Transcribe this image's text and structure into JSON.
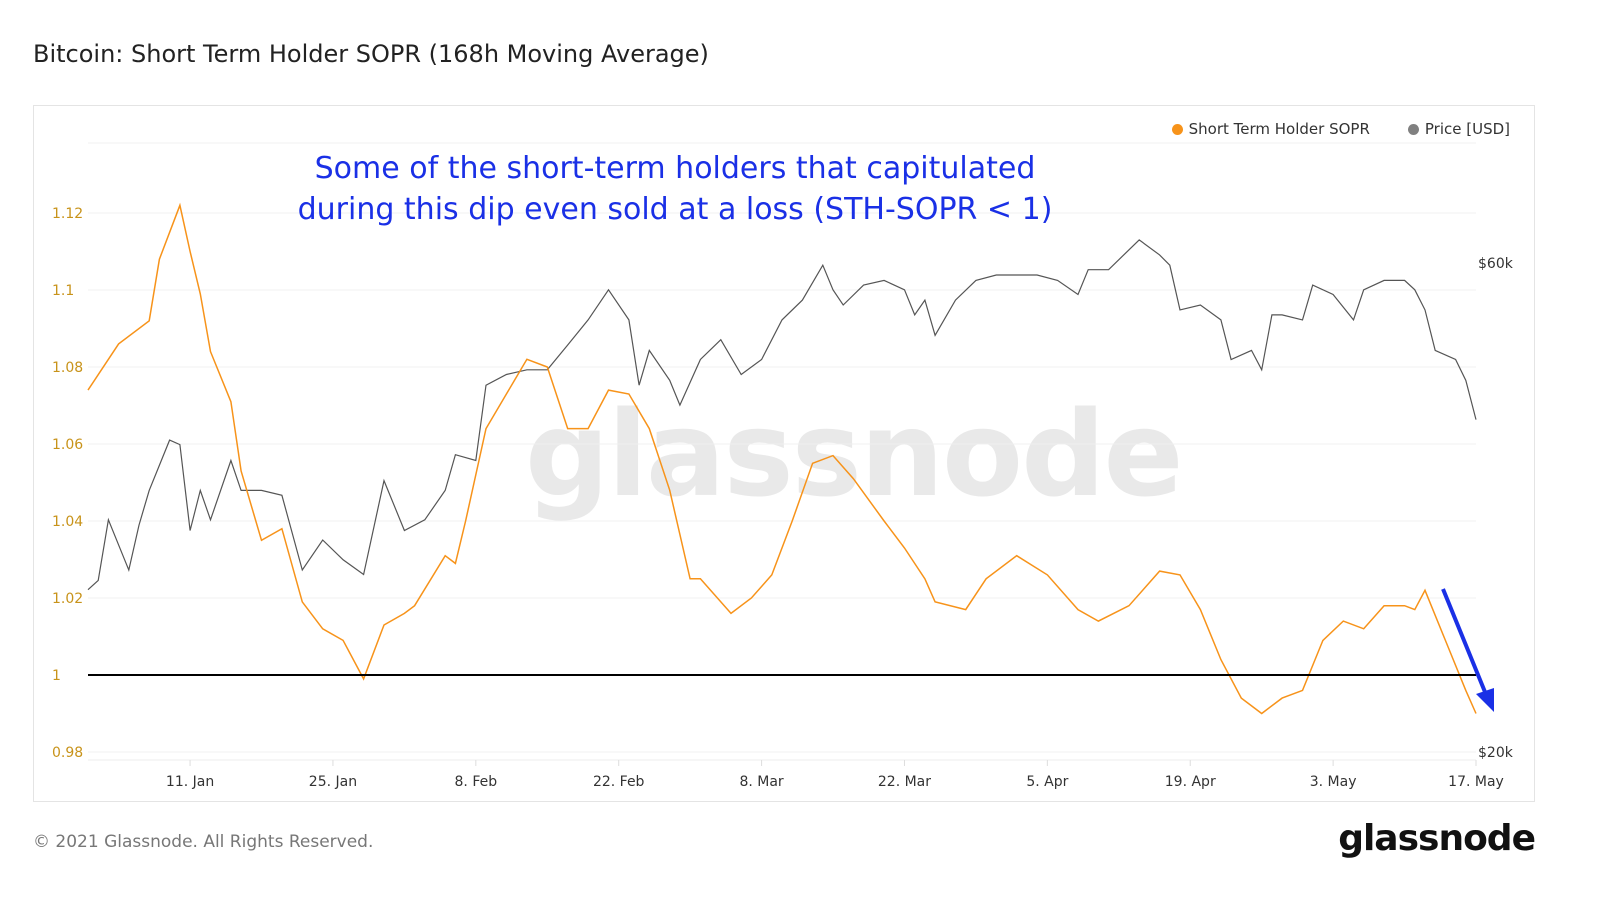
{
  "header": {
    "title": "Bitcoin: Short Term Holder SOPR (168h Moving Average)"
  },
  "footer": {
    "copyright": "© 2021 Glassnode. All Rights Reserved.",
    "logo": "glassnode"
  },
  "watermark": "glassnode",
  "chart_data": {
    "type": "line",
    "annotation": "Some of the short-term holders that capitulated during this dip even sold at a loss (STH-SOPR < 1)",
    "annotation_lines": [
      "Some of the short-term holders that capitulated",
      "during this dip even sold at a loss (STH-SOPR < 1)"
    ],
    "annotation_color": "#1a30e6",
    "annotation_arrow": "down-right arrow pointing to the final SOPR drop",
    "legend_position": "top-right",
    "grid": true,
    "x_range": [
      "2021-01-01",
      "2021-05-17"
    ],
    "x_ticks": [
      "11. Jan",
      "25. Jan",
      "8. Feb",
      "22. Feb",
      "8. Mar",
      "22. Mar",
      "5. Apr",
      "19. Apr",
      "3. May",
      "17. May"
    ],
    "x_tick_dates": [
      "2021-01-11",
      "2021-01-25",
      "2021-02-08",
      "2021-02-22",
      "2021-03-08",
      "2021-03-22",
      "2021-04-05",
      "2021-04-19",
      "2021-05-03",
      "2021-05-17"
    ],
    "y_left": {
      "ylim": [
        0.98,
        1.12
      ],
      "ticks": [
        "0.98",
        "1",
        "1.02",
        "1.04",
        "1.06",
        "1.08",
        "1.1",
        "1.12"
      ],
      "color": "#c8931a"
    },
    "y_right": {
      "scale": "log",
      "ylim": [
        20000,
        60000
      ],
      "ticks": [
        {
          "label": "$20k",
          "value": 20000
        },
        {
          "label": "$60k",
          "value": 60000
        }
      ]
    },
    "reference_line": {
      "value": 1,
      "color": "#000000"
    },
    "series": [
      {
        "name": "Short Term Holder SOPR",
        "axis": "left",
        "color": "#f7931a",
        "dates": [
          "2021-01-01",
          "2021-01-02",
          "2021-01-04",
          "2021-01-07",
          "2021-01-08",
          "2021-01-10",
          "2021-01-11",
          "2021-01-12",
          "2021-01-13",
          "2021-01-15",
          "2021-01-16",
          "2021-01-18",
          "2021-01-20",
          "2021-01-22",
          "2021-01-24",
          "2021-01-26",
          "2021-01-28",
          "2021-01-30",
          "2021-02-01",
          "2021-02-02",
          "2021-02-05",
          "2021-02-06",
          "2021-02-07",
          "2021-02-09",
          "2021-02-11",
          "2021-02-13",
          "2021-02-15",
          "2021-02-17",
          "2021-02-19",
          "2021-02-21",
          "2021-02-23",
          "2021-02-25",
          "2021-02-27",
          "2021-03-01",
          "2021-03-02",
          "2021-03-05",
          "2021-03-07",
          "2021-03-09",
          "2021-03-11",
          "2021-03-13",
          "2021-03-15",
          "2021-03-17",
          "2021-03-20",
          "2021-03-22",
          "2021-03-24",
          "2021-03-25",
          "2021-03-28",
          "2021-03-30",
          "2021-04-02",
          "2021-04-05",
          "2021-04-08",
          "2021-04-10",
          "2021-04-13",
          "2021-04-16",
          "2021-04-18",
          "2021-04-20",
          "2021-04-22",
          "2021-04-24",
          "2021-04-26",
          "2021-04-28",
          "2021-04-30",
          "2021-05-02",
          "2021-05-04",
          "2021-05-06",
          "2021-05-08",
          "2021-05-10",
          "2021-05-11",
          "2021-05-12",
          "2021-05-14",
          "2021-05-16",
          "2021-05-17"
        ],
        "values": [
          1.074,
          1.078,
          1.086,
          1.092,
          1.108,
          1.122,
          1.11,
          1.099,
          1.084,
          1.071,
          1.053,
          1.035,
          1.038,
          1.019,
          1.012,
          1.009,
          0.999,
          1.013,
          1.016,
          1.018,
          1.031,
          1.029,
          1.04,
          1.064,
          1.073,
          1.082,
          1.08,
          1.064,
          1.064,
          1.074,
          1.073,
          1.064,
          1.048,
          1.025,
          1.025,
          1.016,
          1.02,
          1.026,
          1.04,
          1.055,
          1.057,
          1.051,
          1.04,
          1.033,
          1.025,
          1.019,
          1.017,
          1.025,
          1.031,
          1.026,
          1.017,
          1.014,
          1.018,
          1.027,
          1.026,
          1.017,
          1.004,
          0.994,
          0.99,
          0.994,
          0.996,
          1.009,
          1.014,
          1.012,
          1.018,
          1.018,
          1.017,
          1.022,
          1.009,
          0.996,
          0.99
        ]
      },
      {
        "name": "Price [USD]",
        "axis": "right",
        "color": "#808080",
        "dates": [
          "2021-01-01",
          "2021-01-02",
          "2021-01-03",
          "2021-01-05",
          "2021-01-06",
          "2021-01-07",
          "2021-01-09",
          "2021-01-10",
          "2021-01-11",
          "2021-01-12",
          "2021-01-13",
          "2021-01-15",
          "2021-01-16",
          "2021-01-18",
          "2021-01-20",
          "2021-01-22",
          "2021-01-24",
          "2021-01-26",
          "2021-01-28",
          "2021-01-30",
          "2021-02-01",
          "2021-02-03",
          "2021-02-05",
          "2021-02-06",
          "2021-02-08",
          "2021-02-09",
          "2021-02-11",
          "2021-02-13",
          "2021-02-15",
          "2021-02-17",
          "2021-02-19",
          "2021-02-21",
          "2021-02-23",
          "2021-02-24",
          "2021-02-25",
          "2021-02-27",
          "2021-02-28",
          "2021-03-02",
          "2021-03-04",
          "2021-03-06",
          "2021-03-08",
          "2021-03-10",
          "2021-03-12",
          "2021-03-14",
          "2021-03-15",
          "2021-03-16",
          "2021-03-18",
          "2021-03-20",
          "2021-03-22",
          "2021-03-23",
          "2021-03-24",
          "2021-03-25",
          "2021-03-27",
          "2021-03-29",
          "2021-03-31",
          "2021-04-02",
          "2021-04-04",
          "2021-04-06",
          "2021-04-08",
          "2021-04-09",
          "2021-04-11",
          "2021-04-13",
          "2021-04-14",
          "2021-04-16",
          "2021-04-17",
          "2021-04-18",
          "2021-04-20",
          "2021-04-22",
          "2021-04-23",
          "2021-04-25",
          "2021-04-26",
          "2021-04-27",
          "2021-04-28",
          "2021-04-30",
          "2021-05-01",
          "2021-05-03",
          "2021-05-05",
          "2021-05-06",
          "2021-05-08",
          "2021-05-10",
          "2021-05-11",
          "2021-05-12",
          "2021-05-13",
          "2021-05-15",
          "2021-05-16",
          "2021-05-17"
        ],
        "values": [
          28800,
          29400,
          33700,
          30100,
          33300,
          36000,
          40300,
          39900,
          32900,
          36000,
          33700,
          38500,
          36000,
          36000,
          35600,
          30100,
          32200,
          30800,
          29800,
          36800,
          32900,
          33700,
          36000,
          39000,
          38500,
          45600,
          46700,
          47200,
          47200,
          49900,
          52800,
          56500,
          52800,
          45600,
          49300,
          46100,
          43600,
          48300,
          50500,
          46700,
          48300,
          52800,
          55200,
          59700,
          56500,
          54600,
          57100,
          57700,
          56500,
          53400,
          55200,
          51000,
          55200,
          57700,
          58400,
          58400,
          58400,
          57700,
          55900,
          59100,
          59100,
          61800,
          63200,
          61100,
          59700,
          54000,
          54600,
          52800,
          48300,
          49300,
          47200,
          53400,
          53400,
          52800,
          57100,
          55900,
          52800,
          56500,
          57700,
          57700,
          56500,
          54000,
          49300,
          48300,
          46100,
          42200
        ]
      }
    ]
  }
}
